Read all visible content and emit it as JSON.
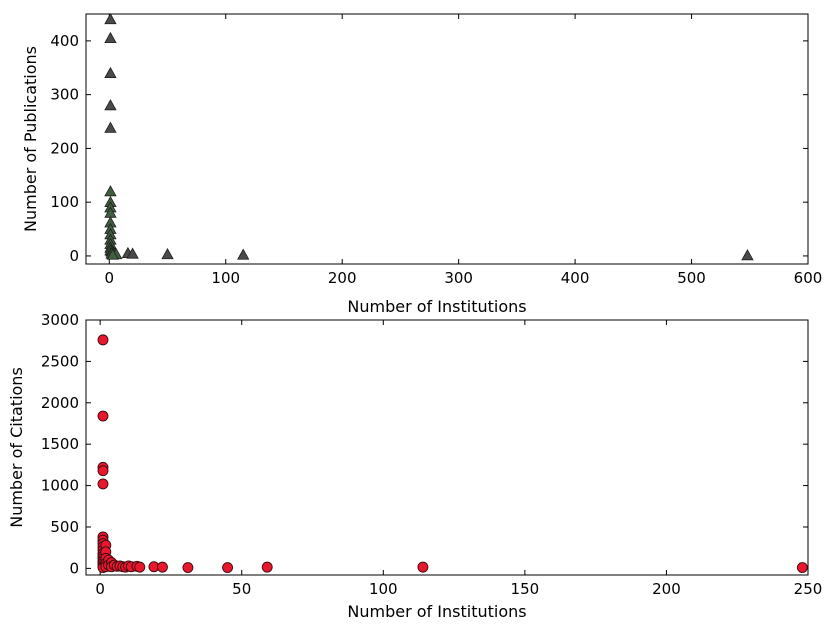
{
  "chart_data": [
    {
      "type": "scatter",
      "title": "",
      "xlabel": "Number of Institutions",
      "ylabel": "Number of Publications",
      "xlim": [
        -20,
        600
      ],
      "ylim": [
        -15,
        450
      ],
      "xticks": [
        0,
        100,
        200,
        300,
        400,
        500,
        600
      ],
      "yticks": [
        0,
        100,
        200,
        300,
        400
      ],
      "grid": false,
      "marker": "triangle",
      "marker_color": "#4a4a4a",
      "marker_edge_color": "#1e1e1e",
      "marker_accent_color": "#3f5f3f",
      "series": [
        {
          "points": [
            [
              1,
              440
            ],
            [
              1,
              405
            ],
            [
              1,
              340
            ],
            [
              1,
              280
            ],
            [
              1,
              238
            ],
            [
              1,
              120
            ],
            [
              1,
              100
            ],
            [
              1,
              90
            ],
            [
              1,
              80
            ],
            [
              1,
              62
            ],
            [
              1,
              50
            ],
            [
              1,
              40
            ],
            [
              1,
              30
            ],
            [
              1,
              22
            ],
            [
              1,
              15
            ],
            [
              1,
              10
            ],
            [
              2,
              8
            ],
            [
              3,
              6
            ],
            [
              4,
              5
            ],
            [
              2,
              4
            ],
            [
              5,
              4
            ],
            [
              6,
              3
            ],
            [
              3,
              2
            ],
            [
              16,
              5
            ],
            [
              20,
              4
            ],
            [
              50,
              3
            ],
            [
              115,
              2
            ],
            [
              548,
              1
            ]
          ]
        }
      ]
    },
    {
      "type": "scatter",
      "title": "",
      "xlabel": "Number of Institutions",
      "ylabel": "Number of Citations",
      "xlim": [
        -5,
        250
      ],
      "ylim": [
        -80,
        3000
      ],
      "xticks": [
        0,
        50,
        100,
        150,
        200,
        250
      ],
      "yticks": [
        0,
        500,
        1000,
        1500,
        2000,
        2500,
        3000
      ],
      "grid": false,
      "marker": "circle",
      "marker_color": "#e8172e",
      "marker_edge_color": "#3a0a0f",
      "series": [
        {
          "points": [
            [
              1,
              2760
            ],
            [
              1,
              1840
            ],
            [
              1,
              1220
            ],
            [
              1,
              1180
            ],
            [
              1,
              1020
            ],
            [
              1,
              380
            ],
            [
              1,
              340
            ],
            [
              1,
              300
            ],
            [
              1,
              260
            ],
            [
              1,
              220
            ],
            [
              1,
              180
            ],
            [
              1,
              150
            ],
            [
              1,
              120
            ],
            [
              1,
              90
            ],
            [
              1,
              60
            ],
            [
              1,
              30
            ],
            [
              1,
              10
            ],
            [
              2,
              280
            ],
            [
              2,
              200
            ],
            [
              2,
              120
            ],
            [
              2,
              60
            ],
            [
              2,
              20
            ],
            [
              3,
              100
            ],
            [
              3,
              40
            ],
            [
              4,
              70
            ],
            [
              4,
              20
            ],
            [
              5,
              40
            ],
            [
              6,
              25
            ],
            [
              7,
              30
            ],
            [
              8,
              20
            ],
            [
              9,
              15
            ],
            [
              10,
              30
            ],
            [
              11,
              20
            ],
            [
              13,
              25
            ],
            [
              14,
              15
            ],
            [
              19,
              20
            ],
            [
              22,
              15
            ],
            [
              31,
              10
            ],
            [
              45,
              10
            ],
            [
              59,
              15
            ],
            [
              114,
              15
            ],
            [
              248,
              10
            ]
          ]
        }
      ]
    }
  ]
}
